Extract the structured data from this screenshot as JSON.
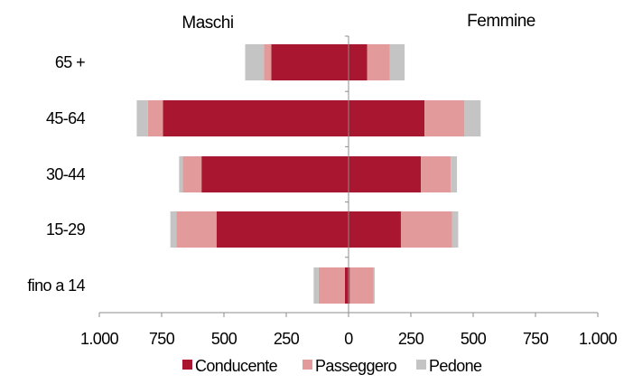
{
  "chart_data": {
    "type": "bar",
    "orientation": "horizontal",
    "layout": "diverging",
    "group_titles": {
      "left": "Maschi",
      "right": "Femmine"
    },
    "categories": [
      "65 +",
      "45-64",
      "30-44",
      "15-29",
      "fino a 14"
    ],
    "x_ticks": [
      {
        "value": -1000,
        "label": "1.000"
      },
      {
        "value": -750,
        "label": "750"
      },
      {
        "value": -500,
        "label": "500"
      },
      {
        "value": -250,
        "label": "250"
      },
      {
        "value": 0,
        "label": "0"
      },
      {
        "value": 250,
        "label": "250"
      },
      {
        "value": 500,
        "label": "500"
      },
      {
        "value": 750,
        "label": "750"
      },
      {
        "value": 1000,
        "label": "1.000"
      }
    ],
    "xlim": [
      -1000,
      1000
    ],
    "grid": false,
    "legend_position": "bottom",
    "series": [
      {
        "name": "Conducente",
        "color": "#a8162f",
        "maschi": [
          310,
          745,
          590,
          530,
          15
        ],
        "femmine": [
          75,
          305,
          290,
          210,
          5
        ]
      },
      {
        "name": "Passeggero",
        "color": "#e29a9a",
        "maschi": [
          30,
          60,
          75,
          160,
          105
        ],
        "femmine": [
          90,
          160,
          120,
          205,
          95
        ]
      },
      {
        "name": "Pedone",
        "color": "#c4c4c4",
        "maschi": [
          75,
          45,
          15,
          25,
          20
        ],
        "femmine": [
          60,
          65,
          25,
          25,
          5
        ]
      }
    ]
  }
}
